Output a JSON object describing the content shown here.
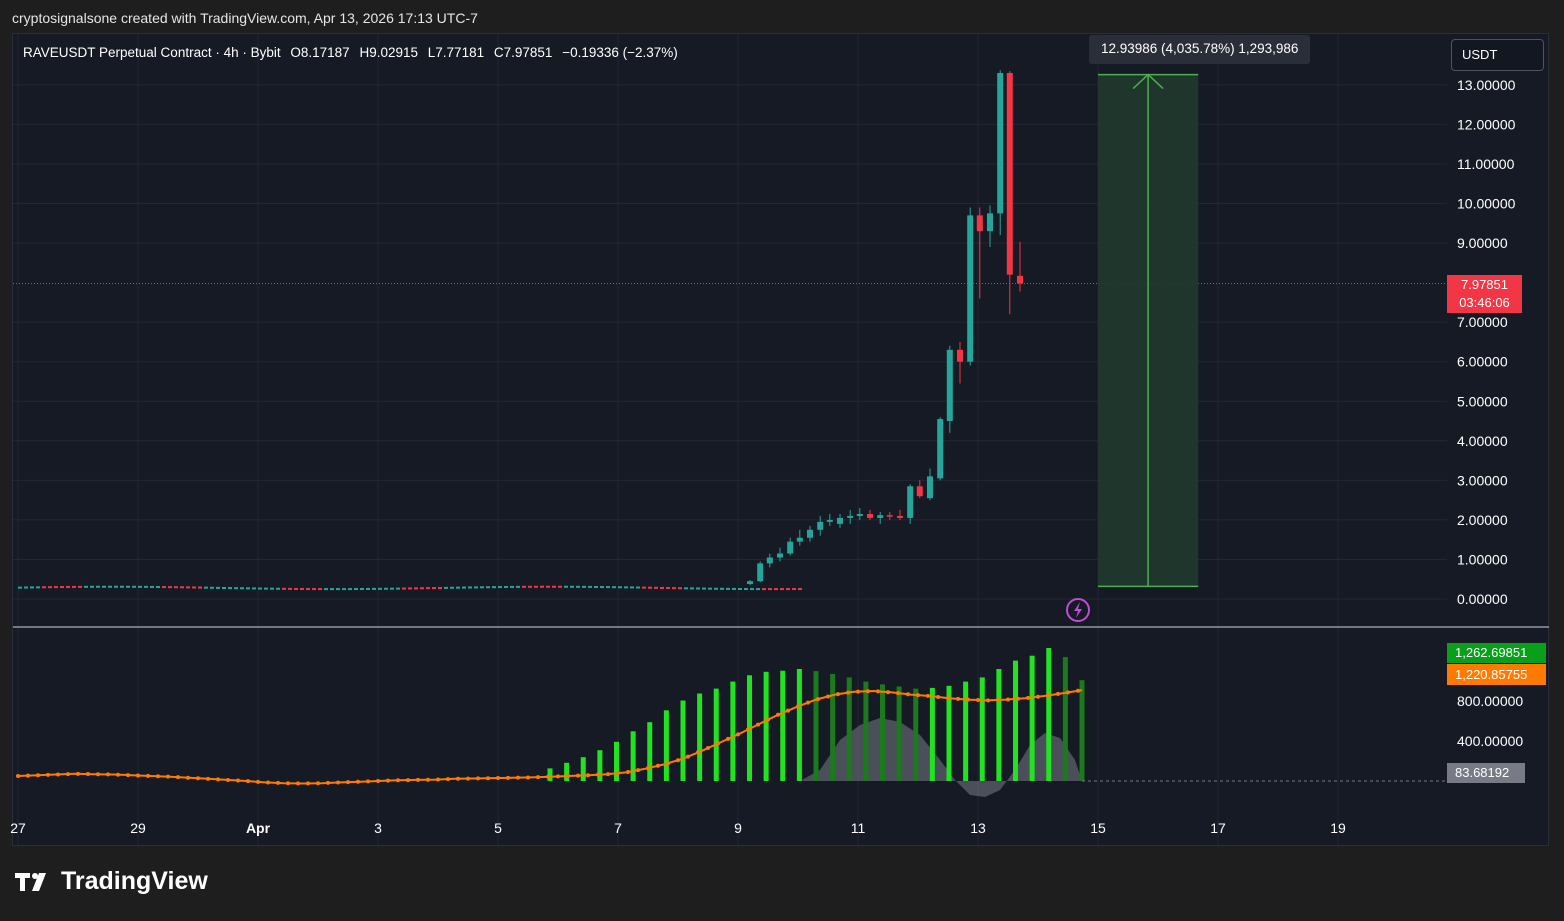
{
  "header": {
    "creator_line": "cryptosignalsone created with TradingView.com, Apr 13, 2026 17:13 UTC-7"
  },
  "symbol_bar": {
    "title": "RAVEUSDT Perpetual Contract · 4h · Bybit",
    "open": "O8.17187",
    "high": "H9.02915",
    "low": "L7.77181",
    "close": "C7.97851",
    "change": "−0.19336 (−2.37%)"
  },
  "currency_selector": "USDT",
  "measure_tool": {
    "label": "12.93986 (4,035.78%) 1,293,986"
  },
  "last_price": {
    "value": "7.97851",
    "countdown": "03:46:06"
  },
  "indicator_labels": {
    "value_green": "1,262.69851",
    "value_orange": "1,220.85755",
    "value_gray": "83.68192"
  },
  "brand": {
    "name": "TradingView"
  },
  "colors": {
    "up": "#26a69a",
    "down": "#f23645",
    "measure_fill": "#1f3a2c",
    "measure_line": "#4caf50",
    "ind_bright": "#22e322",
    "ind_dark": "#1b7a1b",
    "ind_line": "#ff7a00"
  },
  "chart_data": [
    {
      "type": "candlestick",
      "title": "RAVEUSDT Perpetual Contract · 4h · Bybit",
      "y_ticks": [
        "13.00000",
        "12.00000",
        "11.00000",
        "10.00000",
        "9.00000",
        "7.00000",
        "6.00000",
        "5.00000",
        "4.00000",
        "3.00000",
        "2.00000",
        "1.00000",
        "0.00000"
      ],
      "y_tick_values": [
        13,
        12,
        11,
        10,
        9,
        7,
        6,
        5,
        4,
        3,
        2,
        1,
        0
      ],
      "x_ticks": [
        {
          "label": "27",
          "day": 27
        },
        {
          "label": "29",
          "day": 29
        },
        {
          "label": "Apr",
          "day": 31
        },
        {
          "label": "3",
          "day": 33
        },
        {
          "label": "5",
          "day": 35
        },
        {
          "label": "7",
          "day": 37
        },
        {
          "label": "9",
          "day": 39
        },
        {
          "label": "11",
          "day": 41
        },
        {
          "label": "13",
          "day": 43
        },
        {
          "label": "15",
          "day": 45
        },
        {
          "label": "17",
          "day": 47
        },
        {
          "label": "19",
          "day": 49
        }
      ],
      "ylim": [
        -0.4,
        13.7
      ],
      "candles": [
        {
          "day": 39.2,
          "o": 0.38,
          "h": 0.48,
          "l": 0.35,
          "c": 0.45
        },
        {
          "day": 39.37,
          "o": 0.45,
          "h": 0.95,
          "l": 0.42,
          "c": 0.9
        },
        {
          "day": 39.53,
          "o": 0.9,
          "h": 1.15,
          "l": 0.8,
          "c": 1.05
        },
        {
          "day": 39.7,
          "o": 1.05,
          "h": 1.3,
          "l": 0.95,
          "c": 1.15
        },
        {
          "day": 39.87,
          "o": 1.15,
          "h": 1.55,
          "l": 1.1,
          "c": 1.45
        },
        {
          "day": 40.03,
          "o": 1.45,
          "h": 1.75,
          "l": 1.35,
          "c": 1.55
        },
        {
          "day": 40.2,
          "o": 1.55,
          "h": 1.85,
          "l": 1.45,
          "c": 1.75
        },
        {
          "day": 40.37,
          "o": 1.75,
          "h": 2.1,
          "l": 1.6,
          "c": 1.95
        },
        {
          "day": 40.53,
          "o": 1.95,
          "h": 2.15,
          "l": 1.85,
          "c": 2.0
        },
        {
          "day": 40.7,
          "o": 1.9,
          "h": 2.15,
          "l": 1.8,
          "c": 2.05
        },
        {
          "day": 40.87,
          "o": 2.05,
          "h": 2.25,
          "l": 1.9,
          "c": 2.1
        },
        {
          "day": 41.03,
          "o": 2.1,
          "h": 2.3,
          "l": 2.0,
          "c": 2.15
        },
        {
          "day": 41.2,
          "o": 2.15,
          "h": 2.25,
          "l": 2.0,
          "c": 2.05
        },
        {
          "day": 41.37,
          "o": 2.05,
          "h": 2.2,
          "l": 1.9,
          "c": 2.12
        },
        {
          "day": 41.53,
          "o": 2.12,
          "h": 2.2,
          "l": 2.0,
          "c": 2.1
        },
        {
          "day": 41.7,
          "o": 2.1,
          "h": 2.25,
          "l": 2.0,
          "c": 2.05
        },
        {
          "day": 41.87,
          "o": 2.05,
          "h": 2.9,
          "l": 1.9,
          "c": 2.85
        },
        {
          "day": 42.03,
          "o": 2.85,
          "h": 3.0,
          "l": 2.55,
          "c": 2.6
        },
        {
          "day": 42.2,
          "o": 2.55,
          "h": 3.3,
          "l": 2.5,
          "c": 3.1
        },
        {
          "day": 42.37,
          "o": 3.05,
          "h": 4.6,
          "l": 3.0,
          "c": 4.55
        },
        {
          "day": 42.53,
          "o": 4.5,
          "h": 6.4,
          "l": 4.2,
          "c": 6.3
        },
        {
          "day": 42.7,
          "o": 6.3,
          "h": 6.5,
          "l": 5.45,
          "c": 6.0
        },
        {
          "day": 42.87,
          "o": 6.0,
          "h": 9.9,
          "l": 5.9,
          "c": 9.7
        },
        {
          "day": 43.03,
          "o": 9.7,
          "h": 9.9,
          "l": 7.6,
          "c": 9.3
        },
        {
          "day": 43.2,
          "o": 9.3,
          "h": 9.95,
          "l": 8.9,
          "c": 9.75
        },
        {
          "day": 43.37,
          "o": 9.75,
          "h": 13.37,
          "l": 9.2,
          "c": 13.3
        },
        {
          "day": 43.53,
          "o": 13.3,
          "h": 13.35,
          "l": 7.2,
          "c": 8.2
        },
        {
          "day": 43.7,
          "o": 8.17187,
          "h": 9.02915,
          "l": 7.77181,
          "c": 7.97851
        }
      ],
      "measure": {
        "from_price": 0.32,
        "to_price": 13.26,
        "start_day": 45.0,
        "end_day": 46.67
      }
    },
    {
      "type": "bar",
      "series": [
        {
          "name": "",
          "type": "histogram",
          "values": [
            80,
            110,
            130,
            130,
            125,
            110,
            100,
            90,
            80,
            70,
            60,
            40,
            30,
            20,
            25,
            30,
            30,
            35,
            40,
            45,
            50,
            55,
            55,
            60,
            55,
            55,
            60,
            65,
            70,
            75,
            85,
            100,
            180,
            260,
            340,
            440,
            560,
            710,
            840,
            1010,
            1150,
            1250,
            1320,
            1420,
            1510,
            1560,
            1575,
            1600,
            1570,
            1530,
            1480,
            1420,
            1380,
            1350,
            1320,
            1330,
            1360,
            1420,
            1480,
            1600,
            1720,
            1790,
            1900,
            1770,
            1440
          ]
        },
        {
          "name": "",
          "type": "line",
          "values": [
            70,
            80,
            90,
            100,
            95,
            90,
            80,
            70,
            60,
            45,
            30,
            15,
            0,
            -20,
            -30,
            -35,
            -30,
            -20,
            -10,
            0,
            10,
            15,
            20,
            30,
            35,
            40,
            45,
            50,
            60,
            70,
            80,
            95,
            120,
            170,
            230,
            310,
            420,
            540,
            660,
            790,
            920,
            1030,
            1130,
            1200,
            1240,
            1250,
            1230,
            1200,
            1180,
            1150,
            1130,
            1120,
            1130,
            1150,
            1180,
            1220,
            1262
          ]
        }
      ],
      "y_ticks": [
        "800.00000",
        "400.00000"
      ],
      "y_tick_values": [
        800,
        400
      ],
      "ylim": [
        -300,
        2050
      ]
    }
  ]
}
